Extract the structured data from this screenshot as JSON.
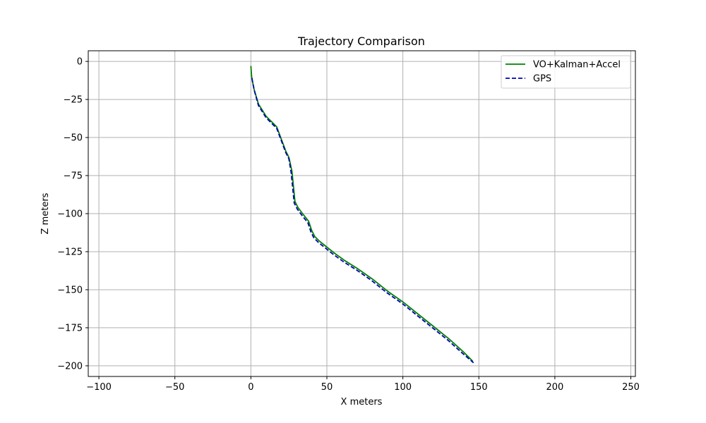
{
  "chart_data": {
    "type": "line",
    "title": "Trajectory Comparison",
    "xlabel": "X meters",
    "ylabel": "Z meters",
    "xlim": [
      -107,
      253
    ],
    "ylim": [
      -207,
      7
    ],
    "xticks": [
      -100,
      -50,
      0,
      50,
      100,
      150,
      200,
      250
    ],
    "yticks": [
      0,
      -25,
      -50,
      -75,
      -100,
      -125,
      -150,
      -175,
      -200
    ],
    "xtick_labels": [
      "−100",
      "−50",
      "0",
      "50",
      "100",
      "150",
      "200",
      "250"
    ],
    "ytick_labels": [
      "0",
      "−25",
      "−50",
      "−75",
      "−100",
      "−125",
      "−150",
      "−175",
      "−200"
    ],
    "grid": true,
    "legend_position": "top-right",
    "series": [
      {
        "name": "VO+Kalman+Accel",
        "color": "#008000",
        "style": "solid",
        "x": [
          0,
          0.5,
          2,
          5,
          10,
          17,
          20,
          23,
          25,
          27,
          28,
          29,
          31,
          34,
          38,
          40,
          42,
          45,
          50,
          55,
          62,
          70,
          80,
          90,
          100,
          110,
          120,
          130,
          140,
          146
        ],
        "y": [
          -3,
          -10,
          -18,
          -28,
          -36,
          -43,
          -51,
          -59,
          -63,
          -72,
          -82,
          -92,
          -96,
          -100,
          -105,
          -111,
          -115,
          -118,
          -122,
          -126,
          -131,
          -136,
          -143,
          -151,
          -158,
          -166,
          -174,
          -182,
          -191,
          -197
        ]
      },
      {
        "name": "GPS",
        "color": "#0000b3",
        "style": "dashed",
        "x": [
          0.7,
          1.2,
          2.5,
          5,
          10,
          17,
          20,
          23,
          25,
          26.5,
          27.5,
          28.5,
          30.5,
          33.5,
          37.5,
          39.5,
          41.5,
          44.5,
          49.5,
          54.5,
          61.5,
          69.5,
          79.5,
          89.5,
          99.5,
          109.5,
          119.5,
          129.5,
          139.5,
          146.5
        ],
        "y": [
          -11,
          -14,
          -20,
          -29,
          -37,
          -44,
          -52,
          -60,
          -64,
          -73,
          -83,
          -93,
          -97,
          -101,
          -106,
          -112,
          -116,
          -119,
          -123,
          -127,
          -132,
          -137,
          -144,
          -152,
          -159,
          -167,
          -175,
          -183,
          -192,
          -198
        ]
      }
    ]
  }
}
